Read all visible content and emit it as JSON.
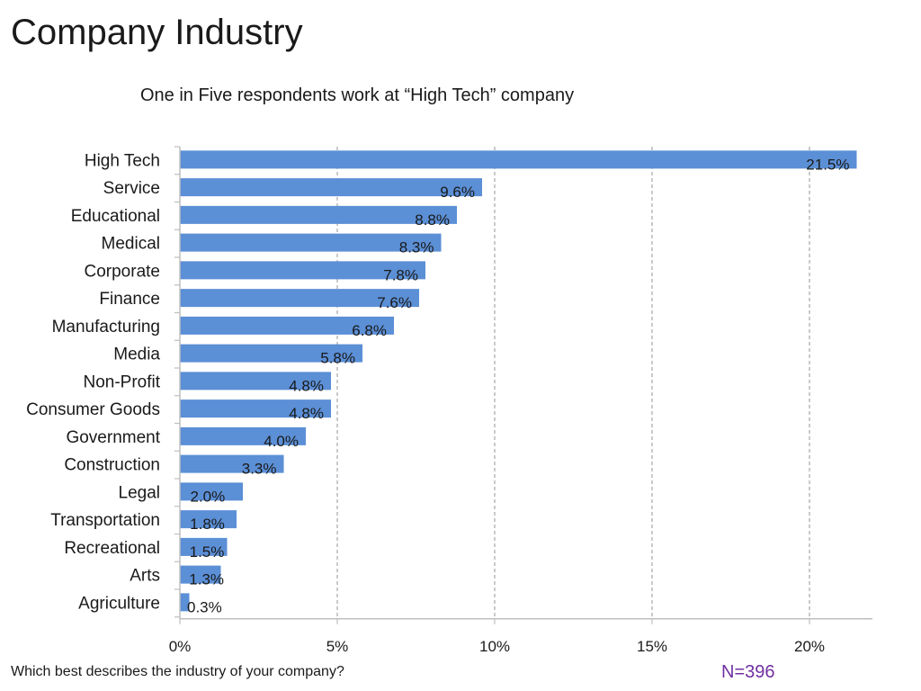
{
  "page": {
    "title": "Company Industry",
    "question": "Which best describes the industry of your company?",
    "sample_size": "N=396"
  },
  "colors": {
    "bar": "#5B8FD6",
    "grid": "#a6a6a6",
    "axis": "#bfbfbf",
    "accent": "#7030A0"
  },
  "chart_data": {
    "type": "bar",
    "orientation": "horizontal",
    "title": "One in Five respondents work at “High Tech” company",
    "xlabel": "",
    "ylabel": "",
    "categories": [
      "High Tech",
      "Service",
      "Educational",
      "Medical",
      "Corporate",
      "Finance",
      "Manufacturing",
      "Media",
      "Non-Profit",
      "Consumer Goods",
      "Government",
      "Construction",
      "Legal",
      "Transportation",
      "Recreational",
      "Arts",
      "Agriculture"
    ],
    "values": [
      21.5,
      9.6,
      8.8,
      8.3,
      7.8,
      7.6,
      6.8,
      5.8,
      4.8,
      4.8,
      4.0,
      3.3,
      2.0,
      1.8,
      1.5,
      1.3,
      0.3
    ],
    "value_labels": [
      "21.5%",
      "9.6%",
      "8.8%",
      "8.3%",
      "7.8%",
      "7.6%",
      "6.8%",
      "5.8%",
      "4.8%",
      "4.8%",
      "4.0%",
      "3.3%",
      "2.0%",
      "1.8%",
      "1.5%",
      "1.3%",
      "0.3%"
    ],
    "xticks": [
      0,
      5,
      10,
      15,
      20
    ],
    "xtick_labels": [
      "0%",
      "5%",
      "10%",
      "15%",
      "20%"
    ],
    "xlim": [
      0,
      22
    ],
    "grid": "vertical-dashed",
    "legend": "none"
  }
}
